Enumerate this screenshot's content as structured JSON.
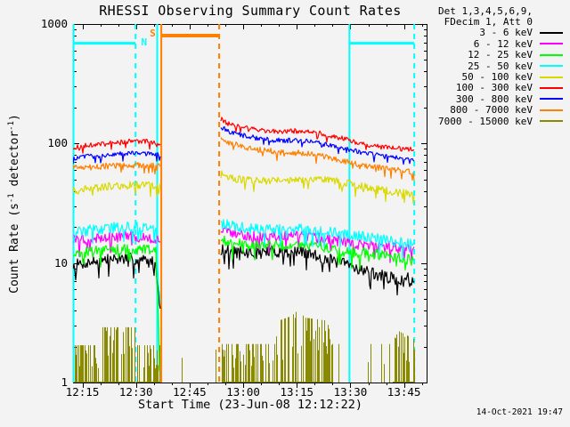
{
  "timestamp": "14-Oct-2021 19:47",
  "colors": {
    "background": "#f3f3f3",
    "frame": "#000000",
    "night_flag": "#00ffff",
    "saa_flag": "#ff8000"
  },
  "chart_data": {
    "type": "line",
    "title": "RHESSI Observing Summary Count Rates",
    "xlabel": "Start Time (23-Jun-08 12:12:22)",
    "ylabel": "Count Rate (s^{-1} detector^{-1})",
    "x_unit_note": "minutes after 12:12:22 UT",
    "x_range": [
      0,
      99.2
    ],
    "y_scale": "log",
    "y_range": [
      1,
      1000
    ],
    "grid": "off",
    "x_ticks": [
      {
        "t": 2.63,
        "label": "12:15"
      },
      {
        "t": 17.63,
        "label": "12:30"
      },
      {
        "t": 32.63,
        "label": "12:45"
      },
      {
        "t": 47.63,
        "label": "13:00"
      },
      {
        "t": 62.63,
        "label": "13:15"
      },
      {
        "t": 77.63,
        "label": "13:30"
      },
      {
        "t": 92.63,
        "label": "13:45"
      }
    ],
    "x_minor": {
      "start": 2.63,
      "step": 5
    },
    "y_ticks": [
      {
        "v": 1,
        "label": "1"
      },
      {
        "v": 10,
        "label": "10"
      },
      {
        "v": 100,
        "label": "100"
      },
      {
        "v": 1000,
        "label": "1000"
      }
    ],
    "legend": {
      "position": "top-right",
      "header": [
        "Det 1,3,4,5,6,9,",
        "FDecim 1, Att 0"
      ],
      "entries": [
        {
          "label": "3 - 6 keV",
          "color": "#000000"
        },
        {
          "label": "6 - 12 keV",
          "color": "#ff00ff"
        },
        {
          "label": "12 - 25 keV",
          "color": "#00ff00"
        },
        {
          "label": "25 - 50 keV",
          "color": "#00ffff"
        },
        {
          "label": "50 - 100 keV",
          "color": "#d9d900"
        },
        {
          "label": "100 - 300 keV",
          "color": "#ff0000"
        },
        {
          "label": "300 - 800 keV",
          "color": "#0000ff"
        },
        {
          "label": "800 - 7000 keV",
          "color": "#ff8000"
        },
        {
          "label": "7000 - 15000 keV",
          "color": "#8a8a00"
        }
      ]
    },
    "data_segments": [
      [
        0,
        24.4
      ],
      [
        41.4,
        95.5
      ]
    ],
    "series": [
      {
        "name": "3 - 6 keV",
        "color": "#000000",
        "noise": 0.05,
        "points": [
          [
            0,
            9.5
          ],
          [
            3,
            10
          ],
          [
            8,
            10.5
          ],
          [
            14,
            11
          ],
          [
            20,
            10.5
          ],
          [
            23.2,
            10
          ],
          [
            23.9,
            5.5
          ],
          [
            24.4,
            4.5
          ],
          [
            41.4,
            13
          ],
          [
            44,
            12.5
          ],
          [
            50,
            12
          ],
          [
            56,
            12.5
          ],
          [
            62,
            12.5
          ],
          [
            66,
            12
          ],
          [
            70,
            11
          ],
          [
            75,
            10
          ],
          [
            80,
            9
          ],
          [
            85,
            8
          ],
          [
            89,
            7.5
          ],
          [
            92,
            7
          ],
          [
            94,
            7.5
          ],
          [
            95.5,
            6.5
          ]
        ]
      },
      {
        "name": "6 - 12 keV",
        "color": "#ff00ff",
        "noise": 0.045,
        "points": [
          [
            0,
            15.5
          ],
          [
            6,
            16
          ],
          [
            12,
            16.5
          ],
          [
            19,
            16.5
          ],
          [
            24.4,
            15.5
          ],
          [
            41.4,
            19
          ],
          [
            46,
            17.5
          ],
          [
            52,
            16.5
          ],
          [
            58,
            16.5
          ],
          [
            64,
            17
          ],
          [
            70,
            16
          ],
          [
            76,
            15
          ],
          [
            82,
            14
          ],
          [
            88,
            13.5
          ],
          [
            95.5,
            13
          ]
        ]
      },
      {
        "name": "12 - 25 keV",
        "color": "#00ff00",
        "noise": 0.045,
        "points": [
          [
            0,
            12
          ],
          [
            6,
            12.5
          ],
          [
            13,
            13
          ],
          [
            20,
            13
          ],
          [
            23.3,
            12.5
          ],
          [
            23.9,
            3.5
          ],
          [
            24.2,
            1.15
          ],
          [
            41.4,
            15.5
          ],
          [
            46,
            14.5
          ],
          [
            52,
            14
          ],
          [
            58,
            14
          ],
          [
            64,
            14.5
          ],
          [
            70,
            13.5
          ],
          [
            76,
            12.5
          ],
          [
            82,
            12
          ],
          [
            88,
            11.5
          ],
          [
            95.5,
            10.5
          ]
        ]
      },
      {
        "name": "25 - 50 keV",
        "color": "#00ffff",
        "noise": 0.045,
        "points": [
          [
            0,
            18
          ],
          [
            6,
            19
          ],
          [
            13,
            20
          ],
          [
            20,
            20
          ],
          [
            23.4,
            19
          ],
          [
            24,
            6
          ],
          [
            24.4,
            4.5
          ],
          [
            41.4,
            21.5
          ],
          [
            46,
            20
          ],
          [
            52,
            19
          ],
          [
            58,
            19
          ],
          [
            64,
            19.5
          ],
          [
            70,
            18.5
          ],
          [
            76,
            17.5
          ],
          [
            82,
            16.5
          ],
          [
            88,
            15.5
          ],
          [
            95.5,
            14.5
          ]
        ]
      },
      {
        "name": "50 - 100 keV",
        "color": "#d9d900",
        "noise": 0.032,
        "points": [
          [
            0,
            40
          ],
          [
            5,
            42
          ],
          [
            11,
            44
          ],
          [
            17,
            45
          ],
          [
            21,
            45
          ],
          [
            24.4,
            44
          ],
          [
            41.4,
            57
          ],
          [
            43,
            52
          ],
          [
            47,
            50
          ],
          [
            52,
            49
          ],
          [
            57,
            49
          ],
          [
            62,
            50
          ],
          [
            67,
            51
          ],
          [
            71,
            50
          ],
          [
            75,
            48
          ],
          [
            79,
            45
          ],
          [
            83,
            43
          ],
          [
            87,
            41
          ],
          [
            91,
            39
          ],
          [
            95.5,
            37
          ]
        ]
      },
      {
        "name": "100 - 300 keV",
        "color": "#ff0000",
        "noise": 0.02,
        "points": [
          [
            0,
            92
          ],
          [
            4,
            97
          ],
          [
            8,
            100
          ],
          [
            13,
            103
          ],
          [
            17,
            105
          ],
          [
            21,
            104
          ],
          [
            24.4,
            101
          ],
          [
            41.4,
            160
          ],
          [
            43,
            148
          ],
          [
            46,
            140
          ],
          [
            50,
            133
          ],
          [
            54,
            128
          ],
          [
            58,
            126
          ],
          [
            62,
            127
          ],
          [
            66,
            126
          ],
          [
            69,
            122
          ],
          [
            72,
            117
          ],
          [
            75,
            111
          ],
          [
            78,
            105
          ],
          [
            81,
            100
          ],
          [
            84,
            96
          ],
          [
            87,
            93
          ],
          [
            90,
            91
          ],
          [
            93,
            90
          ],
          [
            95.5,
            89
          ]
        ]
      },
      {
        "name": "300 - 800 keV",
        "color": "#0000ff",
        "noise": 0.02,
        "points": [
          [
            0,
            76
          ],
          [
            5,
            78
          ],
          [
            10,
            81
          ],
          [
            15,
            83
          ],
          [
            20,
            83
          ],
          [
            24.4,
            80
          ],
          [
            41.4,
            138
          ],
          [
            43,
            128
          ],
          [
            46,
            120
          ],
          [
            50,
            113
          ],
          [
            54,
            108
          ],
          [
            58,
            106
          ],
          [
            62,
            106
          ],
          [
            66,
            104
          ],
          [
            69,
            100
          ],
          [
            72,
            96
          ],
          [
            75,
            92
          ],
          [
            78,
            88
          ],
          [
            81,
            84
          ],
          [
            84,
            81
          ],
          [
            87,
            78
          ],
          [
            90,
            76
          ],
          [
            93,
            74
          ],
          [
            95.5,
            73
          ]
        ]
      },
      {
        "name": "800 - 7000 keV",
        "color": "#ff8000",
        "noise": 0.025,
        "points": [
          [
            0,
            62
          ],
          [
            5,
            63
          ],
          [
            10,
            65
          ],
          [
            15,
            66
          ],
          [
            20,
            66
          ],
          [
            24.4,
            65
          ],
          [
            41.4,
            112
          ],
          [
            43,
            104
          ],
          [
            46,
            97
          ],
          [
            50,
            91
          ],
          [
            54,
            87
          ],
          [
            58,
            85
          ],
          [
            62,
            84
          ],
          [
            66,
            82
          ],
          [
            69,
            79
          ],
          [
            72,
            76
          ],
          [
            75,
            72
          ],
          [
            78,
            69
          ],
          [
            81,
            66
          ],
          [
            84,
            64
          ],
          [
            87,
            62
          ],
          [
            90,
            60
          ],
          [
            93,
            59
          ],
          [
            95.5,
            58
          ]
        ]
      }
    ],
    "spike_series": {
      "name": "7000 - 15000 keV",
      "color": "#8a8a00",
      "baseline": 1,
      "envelope": [
        [
          0,
          2.05
        ],
        [
          7.5,
          2.05
        ],
        [
          8.2,
          2.9
        ],
        [
          17.3,
          2.9
        ],
        [
          17.8,
          2.05
        ],
        [
          24.3,
          2.05
        ],
        [
          41.5,
          2.1
        ],
        [
          56.5,
          2.1
        ],
        [
          57.5,
          3.3
        ],
        [
          61,
          3.6
        ],
        [
          63.5,
          4.2
        ],
        [
          64.5,
          3.5
        ],
        [
          71,
          3.3
        ],
        [
          72.5,
          2.1
        ],
        [
          89,
          2.1
        ],
        [
          91,
          2.7
        ],
        [
          95.4,
          2.3
        ]
      ],
      "density_segments": [
        {
          "t0": 0.3,
          "t1": 17.3,
          "d": 0.6
        },
        {
          "t0": 17.7,
          "t1": 24.3,
          "d": 0.55
        },
        {
          "t0": 29,
          "t1": 40.5,
          "d": 0.04
        },
        {
          "t0": 41.5,
          "t1": 56.8,
          "d": 0.55
        },
        {
          "t0": 56.8,
          "t1": 72.5,
          "d": 0.7
        },
        {
          "t0": 72.5,
          "t1": 89.5,
          "d": 0.06
        },
        {
          "t0": 89.5,
          "t1": 95.4,
          "d": 0.4
        }
      ]
    },
    "flags": {
      "night": {
        "label": "N",
        "color": "#00ffff",
        "bar_value": 690,
        "bars": [
          [
            0,
            17.5
          ],
          [
            77.35,
            95.5
          ]
        ],
        "solid_lines": [
          0.12,
          23.55,
          77.35
        ],
        "dashed_lines": [
          17.5,
          95.5
        ],
        "label_pos": {
          "t": 19.9,
          "v": 700
        }
      },
      "saa": {
        "label": "S",
        "color": "#ff8000",
        "bar_value": 800,
        "bars": [
          [
            24.7,
            40.9
          ]
        ],
        "solid_lines": [
          24.7
        ],
        "dashed_lines": [
          40.9
        ],
        "label_pos": {
          "t": 22.3,
          "v": 830
        }
      }
    }
  }
}
